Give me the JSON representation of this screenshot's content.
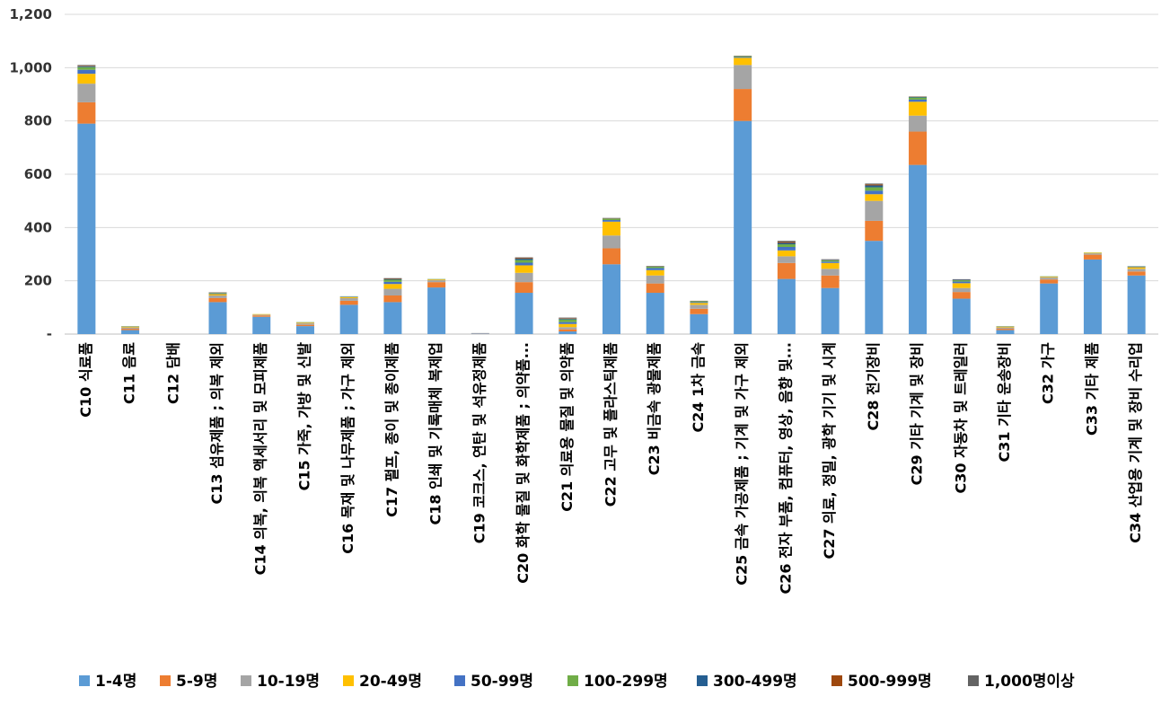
{
  "chart_data": {
    "type": "bar",
    "stacked": true,
    "ylim": [
      0,
      1200
    ],
    "yticks": [
      0,
      200,
      400,
      600,
      800,
      1000,
      1200
    ],
    "ytick_labels": [
      "-",
      "200",
      "400",
      "600",
      "800",
      "1,000",
      "1,200"
    ],
    "grid": true,
    "legend_position": "bottom",
    "categories": [
      "C10 식료품",
      "C11 음료",
      "C12 담배",
      "C13 섬유제품 ; 의복 제외",
      "C14 의복, 의복 액세서리 및 모피제품",
      "C15 가죽, 가방 및 신발",
      "C16 목재 및 나무제품 ; 가구 제외",
      "C17 펄프, 종이 및 종이제품",
      "C18 인쇄 및 기록매체 복제업",
      "C19 코크스, 연탄 및 석유정제품",
      "C20 화학 물질 및 화학제품 ; 의약품...",
      "C21 의료용 물질 및 의약품",
      "C22 고무 및 플라스틱제품",
      "C23 비금속 광물제품",
      "C24 1차 금속",
      "C25 금속 가공제품 ; 기계 및 가구 제외",
      "C26 전자 부품, 컴퓨터, 영상, 음향 및...",
      "C27 의료, 정밀, 광학 기기 및 시계",
      "C28 전기장비",
      "C29 기타 기계 및 장비",
      "C30 자동차 및 트레일러",
      "C31 기타 운송장비",
      "C32 가구",
      "C33 기타 제품",
      "C34 산업용 기계 및 장비 수리업"
    ],
    "series": [
      {
        "name": "1-4명",
        "color": "#5b9bd5",
        "values": [
          790,
          15,
          0,
          120,
          65,
          30,
          110,
          120,
          175,
          2,
          155,
          10,
          262,
          155,
          75,
          800,
          207,
          173,
          350,
          635,
          133,
          15,
          190,
          280,
          220
        ]
      },
      {
        "name": "5-9명",
        "color": "#ed7d31",
        "values": [
          80,
          5,
          0,
          15,
          5,
          5,
          15,
          25,
          20,
          1,
          40,
          8,
          60,
          35,
          20,
          120,
          60,
          47,
          75,
          125,
          25,
          5,
          15,
          18,
          15
        ]
      },
      {
        "name": "10-19명",
        "color": "#a5a5a5",
        "values": [
          70,
          5,
          0,
          10,
          3,
          5,
          10,
          25,
          7,
          1,
          35,
          8,
          48,
          30,
          15,
          90,
          25,
          25,
          75,
          60,
          15,
          5,
          7,
          5,
          10
        ]
      },
      {
        "name": "20-49명",
        "color": "#ffc000",
        "values": [
          37,
          3,
          0,
          5,
          2,
          3,
          4,
          18,
          3,
          0,
          28,
          12,
          52,
          20,
          7,
          27,
          22,
          22,
          25,
          52,
          18,
          3,
          3,
          2,
          6
        ]
      },
      {
        "name": "50-99명",
        "color": "#4472c4",
        "values": [
          15,
          1,
          0,
          2,
          0,
          1,
          2,
          8,
          1,
          0,
          10,
          7,
          6,
          8,
          3,
          3,
          13,
          5,
          13,
          8,
          6,
          1,
          1,
          0,
          2
        ]
      },
      {
        "name": "100-299명",
        "color": "#70ad47",
        "values": [
          10,
          1,
          0,
          2,
          0,
          1,
          1,
          8,
          1,
          0,
          10,
          10,
          5,
          5,
          3,
          3,
          10,
          5,
          13,
          8,
          5,
          1,
          1,
          1,
          1
        ]
      },
      {
        "name": "300-499명",
        "color": "#255e91",
        "values": [
          3,
          0,
          0,
          1,
          0,
          0,
          0,
          3,
          0,
          0,
          5,
          3,
          1,
          1,
          1,
          1,
          5,
          2,
          7,
          2,
          2,
          0,
          0,
          0,
          1
        ]
      },
      {
        "name": "500-999명",
        "color": "#9e480e",
        "values": [
          2,
          0,
          0,
          1,
          0,
          0,
          0,
          2,
          0,
          0,
          3,
          2,
          1,
          1,
          1,
          1,
          4,
          1,
          4,
          1,
          1,
          0,
          0,
          0,
          0
        ]
      },
      {
        "name": "1,000명이상",
        "color": "#636363",
        "values": [
          3,
          0,
          0,
          1,
          0,
          0,
          0,
          1,
          0,
          0,
          2,
          2,
          1,
          1,
          0,
          0,
          4,
          1,
          3,
          1,
          1,
          0,
          0,
          0,
          0
        ]
      }
    ]
  }
}
